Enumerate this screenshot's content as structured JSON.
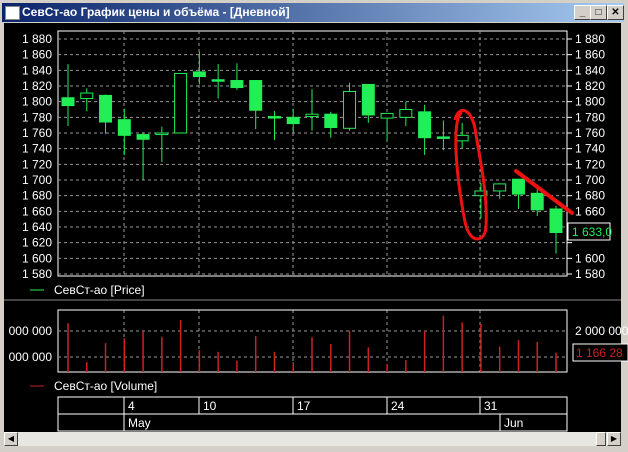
{
  "window": {
    "title": "СевСт-ао График цены и объёма - [Дневной]",
    "minimize": "_",
    "maximize": "□",
    "close": "✕"
  },
  "price_panel": {
    "legend": "СевСт-ао [Price]",
    "y_ticks": [
      "1 880",
      "1 860",
      "1 840",
      "1 820",
      "1 800",
      "1 780",
      "1 760",
      "1 740",
      "1 720",
      "1 700",
      "1 680",
      "1 660",
      "1 640",
      "1 620",
      "1 600",
      "1 580"
    ],
    "current_value": "1 633,0",
    "up_color": "#000000",
    "down_color": "#22ee55",
    "line_color": "#22ee55"
  },
  "volume_panel": {
    "legend": "СевСт-ао [Volume]",
    "left_ticks": [
      "000 000",
      "000 000"
    ],
    "right_ticks": [
      "2 000 000"
    ],
    "current_value": "1 166 28",
    "bar_color": "#cc2222"
  },
  "date_axis": {
    "days": [
      "4",
      "10",
      "17",
      "24",
      "31"
    ],
    "months": [
      "May",
      "Jun"
    ]
  },
  "annotations": {
    "color": "#ee1111",
    "shapes": [
      "ellipse-around-gap",
      "downtrend-line"
    ]
  },
  "chart_data": {
    "type": "candlestick",
    "candles": [
      [
        1805,
        1848,
        1769,
        1795
      ],
      [
        1804,
        1817,
        1788,
        1811
      ],
      [
        1808,
        1809,
        1759,
        1774
      ],
      [
        1777,
        1791,
        1732,
        1757
      ],
      [
        1758,
        1761,
        1700,
        1752
      ],
      [
        1758,
        1768,
        1723,
        1760
      ],
      [
        1760,
        1836,
        1760,
        1836
      ],
      [
        1838,
        1864,
        1822,
        1832
      ],
      [
        1828,
        1848,
        1804,
        1827
      ],
      [
        1827,
        1849,
        1815,
        1818
      ],
      [
        1827,
        1827,
        1765,
        1789
      ],
      [
        1781,
        1788,
        1751,
        1780
      ],
      [
        1780,
        1791,
        1760,
        1772
      ],
      [
        1781,
        1816,
        1763,
        1784
      ],
      [
        1784,
        1787,
        1754,
        1767
      ],
      [
        1766,
        1824,
        1763,
        1813
      ],
      [
        1822,
        1822,
        1773,
        1783
      ],
      [
        1779,
        1785,
        1750,
        1785
      ],
      [
        1780,
        1800,
        1769,
        1790
      ],
      [
        1787,
        1796,
        1732,
        1754
      ],
      [
        1755,
        1776,
        1738,
        1754
      ],
      [
        1750,
        1773,
        1740,
        1757
      ],
      [
        1680,
        1696,
        1651,
        1686
      ],
      [
        1686,
        1696,
        1676,
        1695
      ],
      [
        1701,
        1701,
        1663,
        1682
      ],
      [
        1683,
        1688,
        1654,
        1662
      ],
      [
        1663,
        1667,
        1606,
        1633
      ]
    ],
    "candle_format": [
      "open",
      "high",
      "low",
      "close"
    ],
    "volume": [
      2300000,
      800000,
      1530000,
      1720000,
      2000000,
      1780000,
      2420000,
      1270000,
      1200000,
      860000,
      1810000,
      1200000,
      800000,
      1760000,
      1500000,
      2010000,
      1370000,
      730000,
      880000,
      2010000,
      2590000,
      2330000,
      2270000,
      1400000,
      1650000,
      1580000,
      1166280
    ],
    "price_ylim": [
      1580,
      1880
    ],
    "grid": true
  }
}
